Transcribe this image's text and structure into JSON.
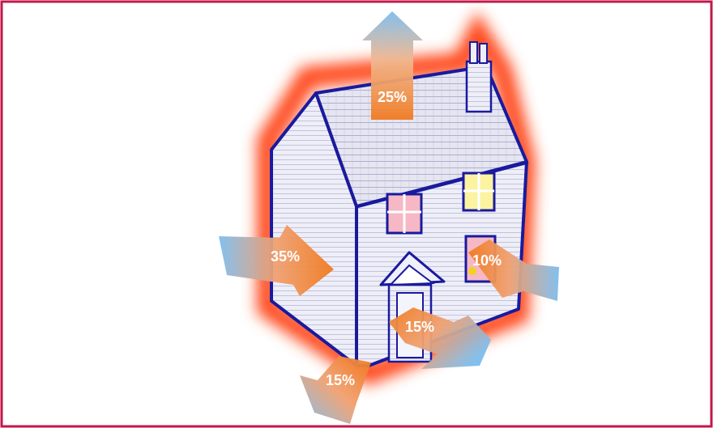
{
  "diagram": {
    "colors": {
      "frame": "#c2184a",
      "heat_glow": "#ff4a1a",
      "outline": "#1a1a9e",
      "wall": "#eeeef8",
      "roof": "#e4e4f0",
      "arrow_hot": "#f07a20",
      "arrow_cold": "#7dbcec",
      "label": "#ffffff"
    },
    "heat_loss": {
      "roof": {
        "label": "25%",
        "value": 25,
        "direction": "up"
      },
      "walls": {
        "label": "35%",
        "value": 35,
        "direction": "left"
      },
      "windows": {
        "label": "10%",
        "value": 10,
        "direction": "right"
      },
      "doors": {
        "label": "15%",
        "value": 15,
        "direction": "down-right"
      },
      "floor": {
        "label": "15%",
        "value": 15,
        "direction": "down-left"
      }
    }
  }
}
